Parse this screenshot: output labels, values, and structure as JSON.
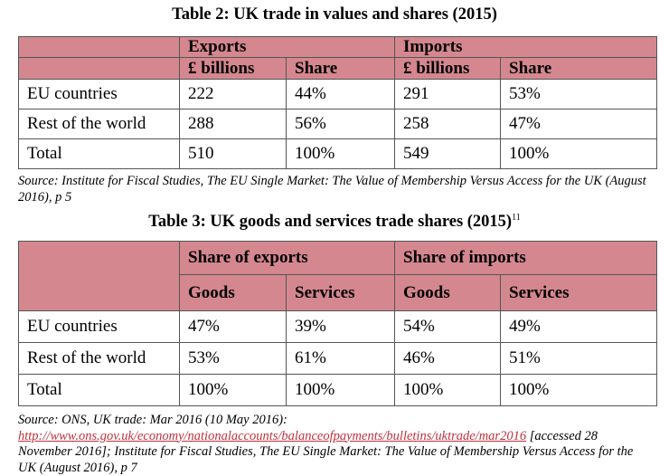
{
  "table2": {
    "title": "Table 2: UK trade in values and shares (2015)",
    "group_headers": [
      "Exports",
      "Imports"
    ],
    "sub_headers": [
      "£ billions",
      "Share",
      "£ billions",
      "Share"
    ],
    "rows": [
      {
        "label": "EU countries",
        "values": [
          "222",
          "44%",
          "291",
          "53%"
        ]
      },
      {
        "label": "Rest of the world",
        "values": [
          "288",
          "56%",
          "258",
          "47%"
        ]
      },
      {
        "label": "Total",
        "values": [
          "510",
          "100%",
          "549",
          "100%"
        ]
      }
    ],
    "source": "Source: Institute for Fiscal Studies, The EU Single Market: The Value of Membership Versus Access for the UK (August 2016), p 5"
  },
  "table3": {
    "title": "Table 3: UK goods and services trade shares (2015)",
    "footnote": "11",
    "group_headers": [
      "Share of exports",
      "Share of imports"
    ],
    "sub_headers": [
      "Goods",
      "Services",
      "Goods",
      "Services"
    ],
    "rows": [
      {
        "label": "EU countries",
        "values": [
          "47%",
          "39%",
          "54%",
          "49%"
        ]
      },
      {
        "label": "Rest of the world",
        "values": [
          "53%",
          "61%",
          "46%",
          "51%"
        ]
      },
      {
        "label": "Total",
        "values": [
          "100%",
          "100%",
          "100%",
          "100%"
        ]
      }
    ],
    "source_pre": "Source: ONS, UK trade: Mar 2016 (10 May 2016): ",
    "source_link": "http://www.ons.gov.uk/economy/nationalaccounts/balanceofpayments/bulletins/uktrade/mar2016",
    "source_post": " [accessed 28 November 2016]; Institute for Fiscal Studies, The EU Single Market: The Value of Membership Versus Access for the UK (August 2016), p 7"
  },
  "colors": {
    "header_fill": "#d4878f",
    "link": "#c0303a"
  }
}
